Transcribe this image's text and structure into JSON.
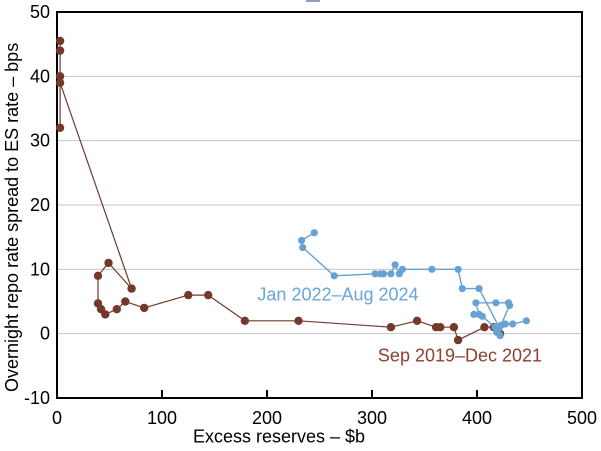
{
  "chart_data": {
    "type": "line",
    "title": "",
    "xlabel": "Excess reserves – $b",
    "ylabel": "Overnight repo rate spread to ES rate – bps",
    "xlim": [
      0,
      500
    ],
    "ylim": [
      -10,
      50
    ],
    "x_ticks": [
      0,
      100,
      200,
      300,
      400,
      500
    ],
    "y_ticks": [
      50,
      40,
      30,
      20,
      10,
      0,
      -10
    ],
    "gridlines_y": [
      40,
      30,
      20,
      10,
      0
    ],
    "grid": "horizontal-only",
    "legend_position": "inline-text-labels",
    "markers": true,
    "series": [
      {
        "name": "Sep 2019–Dec 2021",
        "color_key": "brown",
        "marker_radius": 4.2,
        "line_width": 1.2,
        "points": [
          [
            3,
            45.5
          ],
          [
            3,
            44
          ],
          [
            3,
            40
          ],
          [
            3,
            32
          ],
          [
            3,
            39
          ],
          [
            71,
            7
          ],
          [
            49,
            11
          ],
          [
            39,
            9
          ],
          [
            39,
            4.7
          ],
          [
            42,
            3.8
          ],
          [
            46,
            3
          ],
          [
            57,
            3.8
          ],
          [
            65,
            5
          ],
          [
            83,
            4
          ],
          [
            125,
            6
          ],
          [
            144,
            6
          ],
          [
            179,
            2
          ],
          [
            230,
            2
          ],
          [
            318,
            1
          ],
          [
            343,
            2
          ],
          [
            361,
            1
          ],
          [
            365,
            1
          ],
          [
            378,
            1
          ],
          [
            382,
            -1
          ],
          [
            407,
            1
          ],
          [
            416,
            1
          ],
          [
            422,
            0
          ]
        ]
      },
      {
        "name": "Jan 2022–Aug 2024",
        "color_key": "blue",
        "marker_radius": 3.6,
        "line_width": 1.4,
        "points": [
          [
            447,
            2
          ],
          [
            434,
            1.5
          ],
          [
            427,
            1.5
          ],
          [
            423,
            1.3
          ],
          [
            417,
            1
          ],
          [
            405,
            2.7
          ],
          [
            397,
            3
          ],
          [
            402,
            3
          ],
          [
            399,
            4.8
          ],
          [
            418,
            4.8
          ],
          [
            430,
            4.8
          ],
          [
            431,
            4.4
          ],
          [
            420,
            0.3
          ],
          [
            422,
            -0.3
          ],
          [
            419,
            0.2
          ],
          [
            421,
            1
          ],
          [
            402,
            7
          ],
          [
            386,
            7
          ],
          [
            382,
            10
          ],
          [
            357,
            10
          ],
          [
            329,
            10
          ],
          [
            326,
            9.3
          ],
          [
            322,
            10.7
          ],
          [
            318,
            9.3
          ],
          [
            311,
            9.3
          ],
          [
            308,
            9.3
          ],
          [
            303,
            9.3
          ],
          [
            264,
            9
          ],
          [
            234,
            13.4
          ],
          [
            233,
            14.5
          ],
          [
            245,
            15.7
          ]
        ]
      }
    ]
  },
  "colors": {
    "background": "#ffffff",
    "frame": "#000000",
    "grid": "#c6c6c6",
    "tick_text": "#000000",
    "brown": "#74392b",
    "brown_label": "#8c4032",
    "blue": "#68a1d4",
    "blue_label": "#6aa5da"
  }
}
